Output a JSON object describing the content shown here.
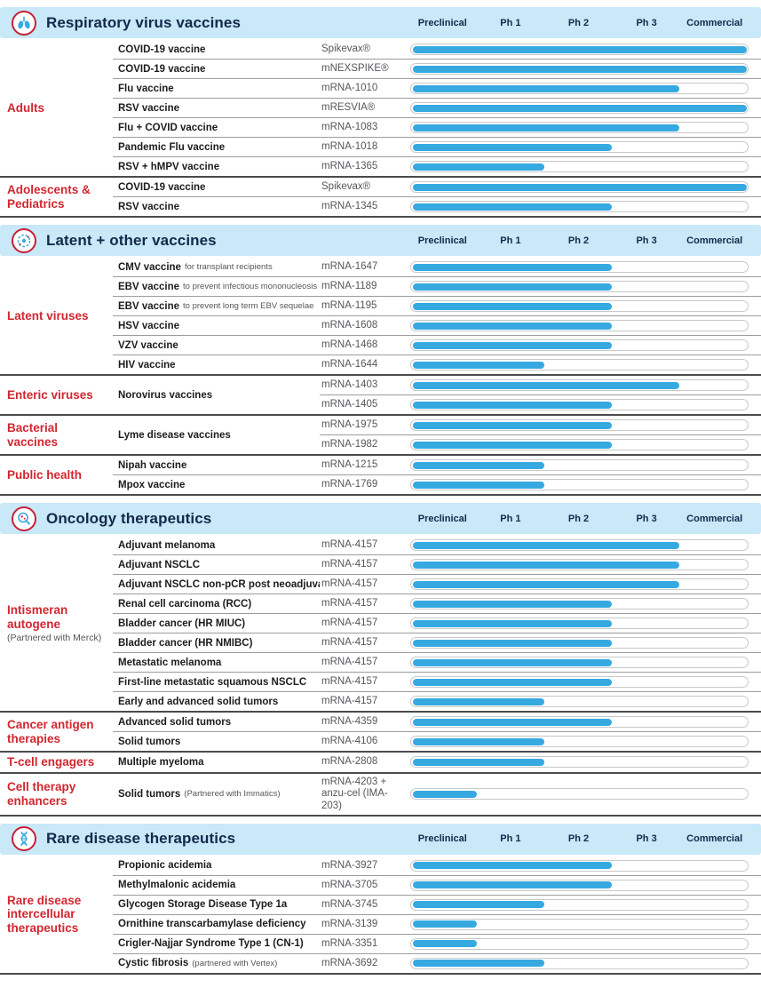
{
  "colors": {
    "band_blue": "#c9e8f8",
    "navy": "#13294b",
    "accent_red": "#d22630",
    "bar_blue": "#36a9e1",
    "code_gray": "#54565b",
    "track_border": "#c6c8ca",
    "row_line": "#9b9c9e",
    "group_line": "#4a4b4d"
  },
  "phases": [
    "Preclinical",
    "Ph 1",
    "Ph 2",
    "Ph 3",
    "Commercial"
  ],
  "phase_progress": {
    "Preclinical": 20,
    "Ph 1": 40,
    "Ph 2": 60,
    "Ph 3": 80,
    "Commercial": 100
  },
  "chart_data": {
    "type": "bar",
    "orientation": "horizontal",
    "x_categories": [
      "Preclinical",
      "Ph 1",
      "Ph 2",
      "Ph 3",
      "Commercial"
    ],
    "x_range_percent": [
      0,
      100
    ],
    "legend": "none",
    "sections": [
      {
        "title": "Respiratory virus vaccines",
        "icon": "lungs-icon",
        "groups": [
          {
            "label": "Adults",
            "rows": [
              {
                "program": "COVID-19 vaccine",
                "code": "Spikevax®",
                "phase": "Commercial"
              },
              {
                "program": "COVID-19 vaccine",
                "code": "mNEXSPIKE®",
                "phase": "Commercial"
              },
              {
                "program": "Flu vaccine",
                "code": "mRNA-1010",
                "phase": "Ph 3"
              },
              {
                "program": "RSV vaccine",
                "code": "mRESVIA®",
                "phase": "Commercial"
              },
              {
                "program": "Flu + COVID vaccine",
                "code": "mRNA-1083",
                "phase": "Ph 3"
              },
              {
                "program": "Pandemic Flu vaccine",
                "code": "mRNA-1018",
                "phase": "Ph 2"
              },
              {
                "program": "RSV + hMPV vaccine",
                "code": "mRNA-1365",
                "phase": "Ph 1"
              }
            ]
          },
          {
            "label": "Adolescents & Pediatrics",
            "rows": [
              {
                "program": "COVID-19 vaccine",
                "code": "Spikevax®",
                "phase": "Commercial"
              },
              {
                "program": "RSV vaccine",
                "code": "mRNA-1345",
                "phase": "Ph 2"
              }
            ]
          }
        ]
      },
      {
        "title": "Latent + other vaccines",
        "icon": "virus-icon",
        "groups": [
          {
            "label": "Latent viruses",
            "rows": [
              {
                "program": "CMV vaccine",
                "program_note": "for transplant recipients",
                "code": "mRNA-1647",
                "phase": "Ph 2"
              },
              {
                "program": "EBV vaccine",
                "program_note": "to prevent infectious mononucleosis",
                "code": "mRNA-1189",
                "phase": "Ph 2"
              },
              {
                "program": "EBV vaccine",
                "program_note": "to prevent long term EBV sequelae",
                "code": "mRNA-1195",
                "phase": "Ph 2"
              },
              {
                "program": "HSV vaccine",
                "code": "mRNA-1608",
                "phase": "Ph 2"
              },
              {
                "program": "VZV vaccine",
                "code": "mRNA-1468",
                "phase": "Ph 2"
              },
              {
                "program": "HIV vaccine",
                "code": "mRNA-1644",
                "phase": "Ph 1"
              }
            ]
          },
          {
            "label": "Enteric viruses",
            "rows": [
              {
                "program": "Norovirus vaccines",
                "entries": [
                  {
                    "code": "mRNA-1403",
                    "phase": "Ph 3"
                  },
                  {
                    "code": "mRNA-1405",
                    "phase": "Ph 2"
                  }
                ]
              }
            ]
          },
          {
            "label": "Bacterial vaccines",
            "rows": [
              {
                "program": "Lyme disease vaccines",
                "entries": [
                  {
                    "code": "mRNA-1975",
                    "phase": "Ph 2"
                  },
                  {
                    "code": "mRNA-1982",
                    "phase": "Ph 2"
                  }
                ]
              }
            ]
          },
          {
            "label": "Public health",
            "rows": [
              {
                "program": "Nipah vaccine",
                "code": "mRNA-1215",
                "phase": "Ph 1"
              },
              {
                "program": "Mpox vaccine",
                "code": "mRNA-1769",
                "phase": "Ph 1"
              }
            ]
          }
        ]
      },
      {
        "title": "Oncology therapeutics",
        "icon": "oncology-magnifier-icon",
        "groups": [
          {
            "label": "Intismeran autogene",
            "label_note": "(Partnered with Merck)",
            "rows": [
              {
                "program": "Adjuvant melanoma",
                "code": "mRNA-4157",
                "phase": "Ph 3"
              },
              {
                "program": "Adjuvant NSCLC",
                "code": "mRNA-4157",
                "phase": "Ph 3"
              },
              {
                "program": "Adjuvant NSCLC non-pCR post neoadjuvant",
                "code": "mRNA-4157",
                "phase": "Ph 3"
              },
              {
                "program": "Renal cell carcinoma (RCC)",
                "code": "mRNA-4157",
                "phase": "Ph 2"
              },
              {
                "program": "Bladder cancer (HR MIUC)",
                "code": "mRNA-4157",
                "phase": "Ph 2"
              },
              {
                "program": "Bladder cancer (HR NMIBC)",
                "code": "mRNA-4157",
                "phase": "Ph 2"
              },
              {
                "program": "Metastatic melanoma",
                "code": "mRNA-4157",
                "phase": "Ph 2"
              },
              {
                "program": "First-line metastatic squamous NSCLC",
                "code": "mRNA-4157",
                "phase": "Ph 2"
              },
              {
                "program": "Early and advanced solid tumors",
                "code": "mRNA-4157",
                "phase": "Ph 1"
              }
            ]
          },
          {
            "label": "Cancer antigen therapies",
            "rows": [
              {
                "program": "Advanced solid tumors",
                "code": "mRNA-4359",
                "phase": "Ph 2"
              },
              {
                "program": "Solid tumors",
                "code": "mRNA-4106",
                "phase": "Ph 1"
              }
            ]
          },
          {
            "label": "T-cell engagers",
            "rows": [
              {
                "program": "Multiple myeloma",
                "code": "mRNA-2808",
                "phase": "Ph 1"
              }
            ]
          },
          {
            "label": "Cell therapy enhancers",
            "rows": [
              {
                "program": "Solid tumors",
                "program_note": "(Partnered with Immatics)",
                "code": "mRNA-4203 + anzu-cel (IMA-203)",
                "phase": "Preclinical",
                "tall": true
              }
            ]
          }
        ]
      },
      {
        "title": "Rare disease therapeutics",
        "icon": "dna-icon",
        "groups": [
          {
            "label": "Rare disease intercellular therapeutics",
            "rows": [
              {
                "program": "Propionic acidemia",
                "code": "mRNA-3927",
                "phase": "Ph 2"
              },
              {
                "program": "Methylmalonic acidemia",
                "code": "mRNA-3705",
                "phase": "Ph 2"
              },
              {
                "program": "Glycogen Storage Disease Type 1a",
                "code": "mRNA-3745",
                "phase": "Ph 1"
              },
              {
                "program": "Ornithine transcarbamylase deficiency",
                "code": "mRNA-3139",
                "phase": "Preclinical"
              },
              {
                "program": "Crigler-Najjar Syndrome Type 1 (CN-1)",
                "code": "mRNA-3351",
                "phase": "Preclinical"
              },
              {
                "program": "Cystic fibrosis",
                "program_note": "(partnered with Vertex)",
                "code": "mRNA-3692",
                "phase": "Ph 1"
              }
            ]
          }
        ]
      }
    ]
  }
}
